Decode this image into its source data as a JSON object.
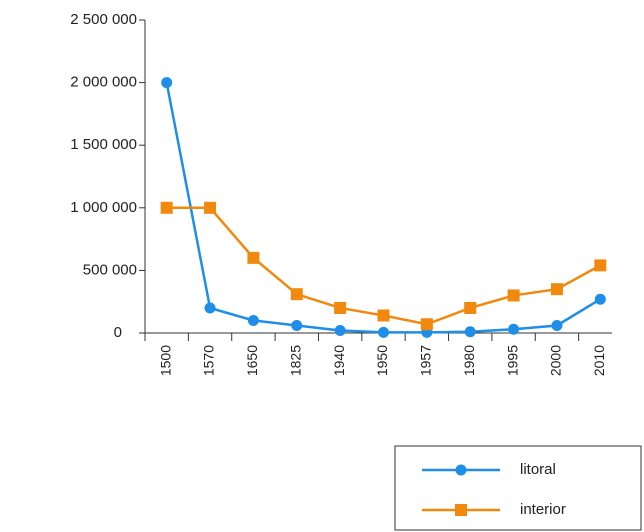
{
  "chart_data": {
    "type": "line",
    "categories": [
      "1500",
      "1570",
      "1650",
      "1825",
      "1940",
      "1950",
      "1957",
      "1980",
      "1995",
      "2000",
      "2010"
    ],
    "series": [
      {
        "name": "litoral",
        "color": "#1f8ee8",
        "marker": "circle",
        "values": [
          2000000,
          200000,
          100000,
          60000,
          20000,
          5000,
          5000,
          10000,
          30000,
          60000,
          270000
        ]
      },
      {
        "name": "interior",
        "color": "#f0890e",
        "marker": "square",
        "values": [
          1000000,
          1000000,
          600000,
          310000,
          200000,
          140000,
          70000,
          200000,
          300000,
          350000,
          540000
        ]
      }
    ],
    "ylim": [
      0,
      2500000
    ],
    "yticks": [
      0,
      {
        "value": 500000,
        "label": "500 000"
      },
      {
        "value": 1000000,
        "label": "1 000 000"
      },
      {
        "value": 1500000,
        "label": "1 500 000"
      },
      {
        "value": 2000000,
        "label": "2 000 000"
      },
      {
        "value": 2500000,
        "label": "2 500 000"
      }
    ],
    "legend": "bottom-right"
  }
}
